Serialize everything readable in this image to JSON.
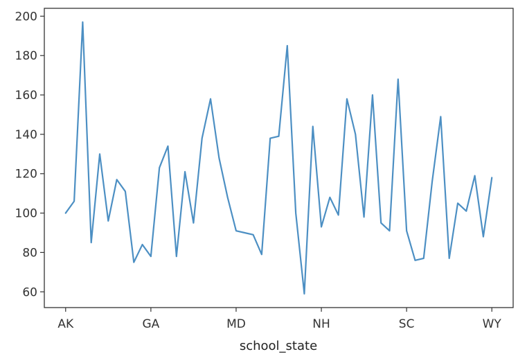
{
  "chart_data": {
    "type": "line",
    "xlabel": "school_state",
    "ylabel": "",
    "title": "",
    "x_tick_labels": [
      "AK",
      "GA",
      "MD",
      "NH",
      "SC",
      "WY"
    ],
    "ylim": [
      52,
      204
    ],
    "yticks": [
      60,
      80,
      100,
      120,
      140,
      160,
      180,
      200
    ],
    "color": "#4c8fc3",
    "grid": false,
    "series": [
      {
        "values": [
          100,
          106,
          197,
          85,
          130,
          96,
          117,
          111,
          75,
          84,
          78,
          123,
          134,
          78,
          121,
          95,
          138,
          158,
          128,
          108,
          91,
          90,
          89,
          79,
          138,
          139,
          185,
          100,
          59,
          144,
          93,
          108,
          99,
          158,
          140,
          98,
          160,
          95,
          91,
          168,
          91,
          76,
          77,
          116,
          149,
          77,
          105,
          101,
          119,
          88,
          118
        ]
      }
    ]
  }
}
